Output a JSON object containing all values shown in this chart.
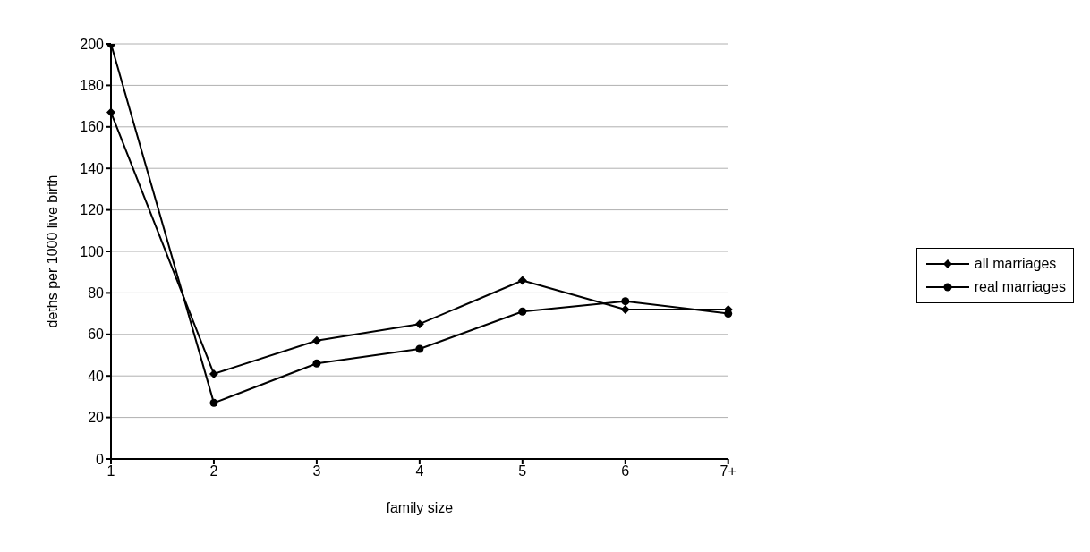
{
  "chart_data": {
    "type": "line",
    "xlabel": "family size",
    "ylabel": "deths per 1000 live birth",
    "categories": [
      "1",
      "2",
      "3",
      "4",
      "5",
      "6",
      "7+"
    ],
    "series": [
      {
        "name": "all marriages",
        "color": "#000000",
        "marker": "diamond",
        "values": [
          167,
          41,
          57,
          65,
          86,
          72,
          72
        ]
      },
      {
        "name": "real marriages",
        "color": "#000000",
        "marker": "circle",
        "values": [
          200,
          27,
          46,
          53,
          71,
          76,
          70
        ]
      }
    ],
    "ylim": [
      0,
      200
    ],
    "yticks": [
      0,
      20,
      40,
      60,
      80,
      100,
      120,
      140,
      160,
      180,
      200
    ],
    "grid": "y",
    "legend": "right"
  }
}
